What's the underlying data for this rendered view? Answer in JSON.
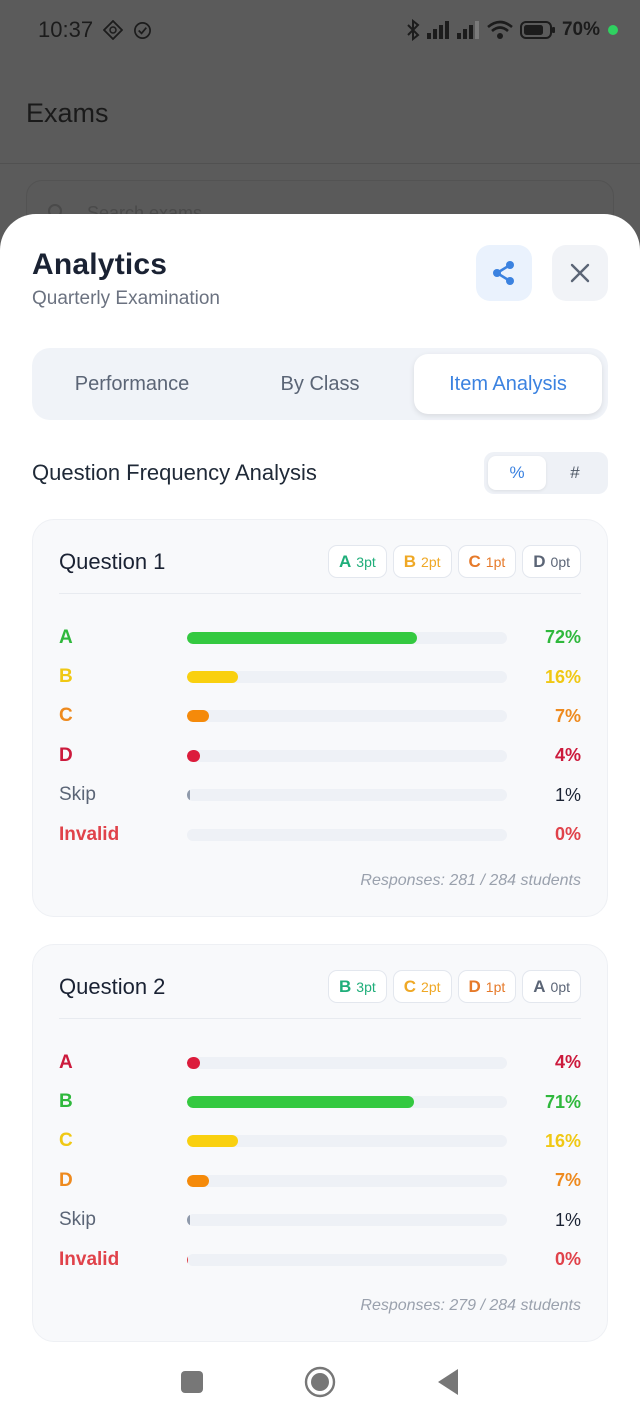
{
  "status_bar": {
    "time": "10:37",
    "battery": "70%",
    "icons": [
      "app-diamond-icon",
      "check-circle-icon",
      "bluetooth-icon",
      "signal-icon",
      "signal-weak-icon",
      "wifi-icon",
      "battery-icon"
    ]
  },
  "background": {
    "title": "Exams",
    "search_placeholder": "Search exams"
  },
  "sheet": {
    "title": "Analytics",
    "subtitle": "Quarterly Examination",
    "share_icon": "share-icon",
    "close_icon": "close-icon"
  },
  "tabs": [
    {
      "label": "Performance",
      "active": false
    },
    {
      "label": "By Class",
      "active": false
    },
    {
      "label": "Item Analysis",
      "active": true
    }
  ],
  "section": {
    "title": "Question Frequency Analysis",
    "toggle": [
      {
        "label": "%",
        "active": true
      },
      {
        "label": "#",
        "active": false
      }
    ]
  },
  "colors": {
    "accent": "#3b82e0",
    "green": "#34c940",
    "yellow": "#f9d00f",
    "orange": "#f58a0a",
    "red": "#dc1c3c",
    "skip": "#8f9aab",
    "invalid": "#e0424a"
  },
  "questions": [
    {
      "title": "Question 1",
      "badges": [
        {
          "letter": "A",
          "pts": "3pt",
          "color": "#1fae7a"
        },
        {
          "letter": "B",
          "pts": "2pt",
          "color": "#efa825"
        },
        {
          "letter": "C",
          "pts": "1pt",
          "color": "#e67a2a"
        },
        {
          "letter": "D",
          "pts": "0pt",
          "color": "#5b6576"
        }
      ],
      "rows": [
        {
          "label": "A",
          "value": 72,
          "display": "72%",
          "color": "#34c940",
          "labelColor": "#2fb83c"
        },
        {
          "label": "B",
          "value": 16,
          "display": "16%",
          "color": "#f9d00f",
          "labelColor": "#f0c814"
        },
        {
          "label": "C",
          "value": 7,
          "display": "7%",
          "color": "#f58a0a",
          "labelColor": "#ee8a1e"
        },
        {
          "label": "D",
          "value": 4,
          "display": "4%",
          "color": "#dc1c3c",
          "labelColor": "#cc1a3c"
        },
        {
          "label": "Skip",
          "value": 1,
          "display": "1%",
          "color": "#8f9aab",
          "labelColor": "#5b6576"
        },
        {
          "label": "Invalid",
          "value": 0,
          "display": "0%",
          "color": "#e0424a",
          "labelColor": "#e0424a"
        }
      ],
      "responses": "Responses: 281 / 284 students"
    },
    {
      "title": "Question 2",
      "badges": [
        {
          "letter": "B",
          "pts": "3pt",
          "color": "#1fae7a"
        },
        {
          "letter": "C",
          "pts": "2pt",
          "color": "#efa825"
        },
        {
          "letter": "D",
          "pts": "1pt",
          "color": "#e67a2a"
        },
        {
          "letter": "A",
          "pts": "0pt",
          "color": "#5b6576"
        }
      ],
      "rows": [
        {
          "label": "A",
          "value": 4,
          "display": "4%",
          "color": "#dc1c3c",
          "labelColor": "#cc1a3c"
        },
        {
          "label": "B",
          "value": 71,
          "display": "71%",
          "color": "#34c940",
          "labelColor": "#2fb83c"
        },
        {
          "label": "C",
          "value": 16,
          "display": "16%",
          "color": "#f9d00f",
          "labelColor": "#f0c814"
        },
        {
          "label": "D",
          "value": 7,
          "display": "7%",
          "color": "#f58a0a",
          "labelColor": "#ee8a1e"
        },
        {
          "label": "Skip",
          "value": 1,
          "display": "1%",
          "color": "#8f9aab",
          "labelColor": "#5b6576"
        },
        {
          "label": "Invalid",
          "value": 0,
          "display": "0%",
          "color": "#e0424a",
          "labelColor": "#e0424a"
        }
      ],
      "responses": "Responses: 279 / 284 students"
    }
  ],
  "navbar": [
    "recents-icon",
    "home-icon",
    "back-icon"
  ]
}
